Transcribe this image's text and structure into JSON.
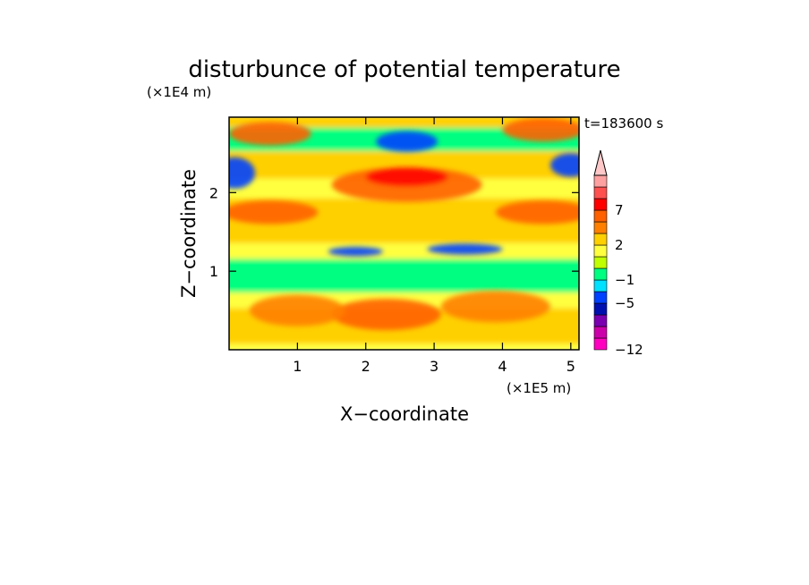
{
  "chart_data": {
    "type": "heatmap",
    "title": "disturbunce of potential temperature",
    "time_label": "t=183600 s",
    "xlabel": "X−coordinate",
    "ylabel": "Z−coordinate",
    "x_unit": "(×1E5 m)",
    "y_unit": "(×1E4 m)",
    "xlim": [
      0,
      5.12
    ],
    "ylim": [
      0,
      2.96
    ],
    "x_ticks": [
      1,
      2,
      3,
      4,
      5
    ],
    "y_ticks": [
      1,
      2
    ],
    "x_tick_labels": [
      "1",
      "2",
      "3",
      "4",
      "5"
    ],
    "y_tick_labels": [
      "1",
      "2"
    ],
    "colorbar": {
      "levels_bottom_to_top": [
        -12,
        -10,
        -8,
        -6,
        -5,
        -3,
        -1,
        0,
        1,
        2,
        3,
        5,
        7,
        8,
        10
      ],
      "colors_bottom_to_top": [
        "#ff00c0",
        "#cc00aa",
        "#7a00b0",
        "#0010b0",
        "#0040ff",
        "#00e0ff",
        "#00ff80",
        "#c0ff00",
        "#ffff40",
        "#ffd000",
        "#ff8000",
        "#ff6000",
        "#ff0000",
        "#ff5050",
        "#ffa0a0",
        "#ffc8c8"
      ],
      "tick_labels": [
        {
          "value": -12,
          "text": "−12"
        },
        {
          "value": -5,
          "text": "−5"
        },
        {
          "value": -1,
          "text": "−1"
        },
        {
          "value": 2,
          "text": "2"
        },
        {
          "value": 7,
          "text": "7"
        }
      ]
    },
    "features": [
      {
        "x": 2.6,
        "z": 2.65,
        "rx": 0.45,
        "rz": 0.13,
        "v": -6
      },
      {
        "x": 0.08,
        "z": 2.25,
        "rx": 0.3,
        "rz": 0.2,
        "v": -6
      },
      {
        "x": 5.0,
        "z": 2.35,
        "rx": 0.3,
        "rz": 0.15,
        "v": -6
      },
      {
        "x": 1.85,
        "z": 1.25,
        "rx": 0.4,
        "rz": 0.06,
        "v": -6
      },
      {
        "x": 3.45,
        "z": 1.28,
        "rx": 0.55,
        "rz": 0.07,
        "v": -6
      },
      {
        "x": 2.6,
        "z": 2.1,
        "rx": 1.1,
        "rz": 0.22,
        "v": 4
      },
      {
        "x": 2.6,
        "z": 2.2,
        "rx": 0.6,
        "rz": 0.12,
        "v": 6
      },
      {
        "x": 0.6,
        "z": 1.75,
        "rx": 0.7,
        "rz": 0.15,
        "v": 3
      },
      {
        "x": 4.6,
        "z": 1.75,
        "rx": 0.7,
        "rz": 0.15,
        "v": 3
      },
      {
        "x": 2.3,
        "z": 0.45,
        "rx": 0.8,
        "rz": 0.2,
        "v": 3
      },
      {
        "x": 1.0,
        "z": 0.5,
        "rx": 0.7,
        "rz": 0.2,
        "v": 2
      },
      {
        "x": 3.9,
        "z": 0.55,
        "rx": 0.8,
        "rz": 0.2,
        "v": 2
      },
      {
        "x": 0.6,
        "z": 2.75,
        "rx": 0.6,
        "rz": 0.15,
        "v": 3
      },
      {
        "x": 4.6,
        "z": 2.8,
        "rx": 0.6,
        "rz": 0.15,
        "v": 3
      }
    ]
  }
}
